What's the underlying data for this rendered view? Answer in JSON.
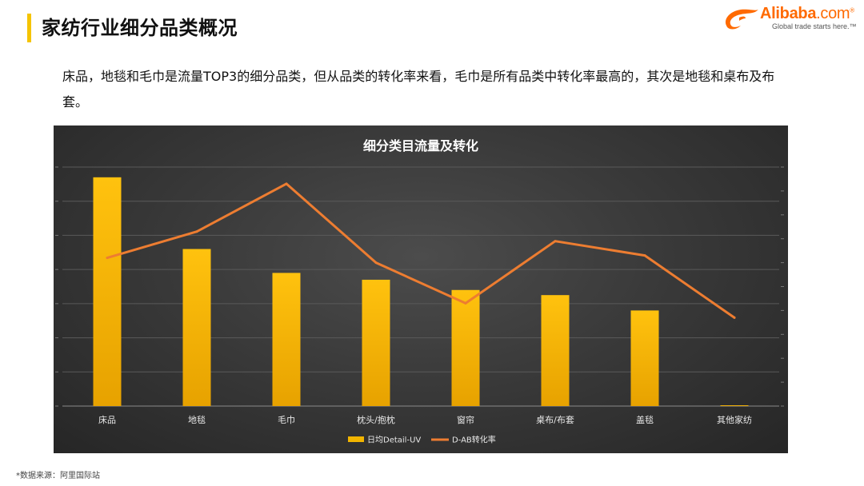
{
  "page": {
    "title": "家纺行业细分品类概况",
    "summary": "床品，地毯和毛巾是流量TOP3的细分品类，但从品类的转化率来看，毛巾是所有品类中转化率最高的，其次是地毯和桌布及布套。",
    "source": "*数据来源：阿里国际站"
  },
  "logo": {
    "brand": "Alibaba",
    "suffix": ".com",
    "reg": "®",
    "tagline": "Global trade starts here.™"
  },
  "colors": {
    "accent": "#f5c400",
    "brand": "#ff6a00",
    "bar": "#f2b500",
    "line": "#ed7d31"
  },
  "chart_data": {
    "type": "bar",
    "title": "细分类目流量及转化",
    "categories": [
      "床品",
      "地毯",
      "毛巾",
      "枕头/抱枕",
      "窗帘",
      "桌布/布套",
      "盖毯",
      "其他家纺"
    ],
    "series": [
      {
        "name": "日均Detail-UV",
        "type": "bar",
        "axis": "left",
        "values": [
          6.7,
          4.6,
          3.9,
          3.7,
          3.4,
          3.25,
          2.8,
          0.02
        ]
      },
      {
        "name": "D-AB转化率",
        "type": "line",
        "axis": "right",
        "values": [
          6.2,
          7.3,
          9.3,
          6.0,
          4.3,
          6.9,
          6.3,
          3.7
        ]
      }
    ],
    "ylim_left": [
      0,
      7
    ],
    "ylim_right": [
      0,
      10
    ],
    "grid": true,
    "legend": "bottom"
  }
}
